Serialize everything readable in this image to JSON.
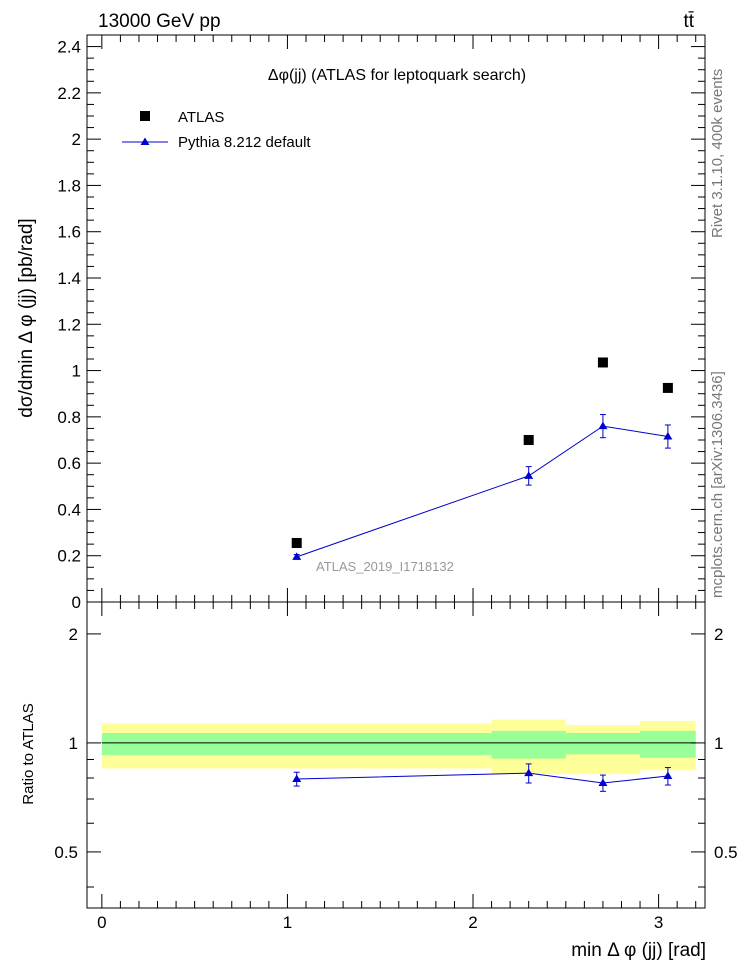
{
  "header": {
    "left_label": "13000 GeV pp",
    "right_label": "tt̄"
  },
  "side_labels": {
    "rivet": "Rivet 3.1.10,  400k events",
    "mcplots": "mcplots.cern.ch [arXiv:1306.3436]"
  },
  "colors": {
    "atlas_marker": "#000000",
    "pythia_line": "#0000cc",
    "band_inner": "#99ff99",
    "band_outer": "#ffff99",
    "watermark": "#999999"
  },
  "chart_data": [
    {
      "type": "scatter",
      "title": "Δφ(jj) (ATLAS for leptoquark search)",
      "ylabel": "dσ/dmin Δ φ (jj) [pb/rad]",
      "xlabel": "",
      "watermark": "ATLAS_2019_I1718132",
      "xlim": [
        -0.08,
        3.25
      ],
      "ylim": [
        0,
        2.45
      ],
      "yticks": [
        0,
        0.2,
        0.4,
        0.6,
        0.8,
        1,
        1.2,
        1.4,
        1.6,
        1.8,
        2,
        2.2,
        2.4
      ],
      "ytick_labels": [
        "0",
        "0.2",
        "0.4",
        "0.6",
        "0.8",
        "1",
        "1.2",
        "1.4",
        "1.6",
        "1.8",
        "2",
        "2.2",
        "2.4"
      ],
      "legend_position": "top-left",
      "series": [
        {
          "name": "ATLAS",
          "marker": "square",
          "x": [
            1.05,
            2.3,
            2.7,
            3.05
          ],
          "y": [
            0.255,
            0.7,
            1.035,
            0.925
          ]
        },
        {
          "name": "Pythia 8.212 default",
          "marker": "triangle",
          "x": [
            1.05,
            2.3,
            2.7,
            3.05
          ],
          "y": [
            0.195,
            0.545,
            0.76,
            0.715
          ],
          "yerr": [
            0.01,
            0.04,
            0.05,
            0.05
          ]
        }
      ]
    },
    {
      "type": "line",
      "ylabel": "Ratio to ATLAS",
      "xlabel": "min Δ φ (jj) [rad]",
      "xlim": [
        -0.08,
        3.25
      ],
      "ylim": [
        0.35,
        2.45
      ],
      "yscale": "log",
      "yticks": [
        0.5,
        1,
        2
      ],
      "ytick_labels": [
        "0.5",
        "1",
        "2"
      ],
      "xticks": [
        0,
        1,
        2,
        3
      ],
      "xtick_labels": [
        "0",
        "1",
        "2",
        "3"
      ],
      "bands": [
        {
          "x0": 0.0,
          "x1": 2.1,
          "inner": [
            0.925,
            1.065
          ],
          "outer": [
            0.85,
            1.13
          ]
        },
        {
          "x0": 2.1,
          "x1": 2.5,
          "inner": [
            0.905,
            1.08
          ],
          "outer": [
            0.82,
            1.16
          ]
        },
        {
          "x0": 2.5,
          "x1": 2.9,
          "inner": [
            0.93,
            1.065
          ],
          "outer": [
            0.82,
            1.12
          ]
        },
        {
          "x0": 2.9,
          "x1": 3.2,
          "inner": [
            0.91,
            1.08
          ],
          "outer": [
            0.84,
            1.15
          ]
        }
      ],
      "series": [
        {
          "name": "Pythia 8.212 default",
          "x": [
            1.05,
            2.3,
            2.7,
            3.05
          ],
          "y": [
            0.795,
            0.825,
            0.775,
            0.81
          ],
          "yerr": [
            0.035,
            0.05,
            0.04,
            0.045
          ]
        }
      ]
    }
  ]
}
